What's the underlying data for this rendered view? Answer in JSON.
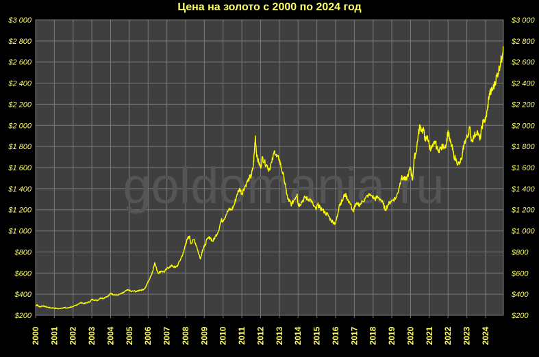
{
  "chart_data": {
    "type": "line",
    "title": "Цена на золото с 2000 по 2024  год",
    "watermark": "goldomania.ru",
    "x_categories": [
      "2000",
      "2001",
      "2002",
      "2003",
      "2004",
      "2005",
      "2006",
      "2007",
      "2008",
      "2009",
      "2010",
      "2011",
      "2012",
      "2013",
      "2014",
      "2015",
      "2016",
      "2017",
      "2018",
      "2019",
      "2020",
      "2021",
      "2022",
      "2023",
      "2024"
    ],
    "y_ticks": [
      "$200",
      "$400",
      "$600",
      "$800",
      "$1 000",
      "$1 200",
      "$1 400",
      "$1 600",
      "$1 800",
      "$2 000",
      "$2 200",
      "$2 400",
      "$2 600",
      "$2 800",
      "$3 000"
    ],
    "ylim": [
      200,
      3000
    ],
    "xlim": [
      2000.0,
      2024.95
    ],
    "grid": true,
    "colors": {
      "line": "#ffff00",
      "plot_bg": "#3f3f3f",
      "grid": "#7a7a7a",
      "axis_text": "#ffff66",
      "background": "#000000"
    },
    "series": [
      {
        "x": [
          2000.0,
          2000.08,
          2000.16,
          2000.25,
          2000.35,
          2000.5,
          2000.65,
          2000.8,
          2000.95,
          2001.1,
          2001.25,
          2001.4,
          2001.55,
          2001.7,
          2001.85,
          2002.0,
          2002.15,
          2002.3,
          2002.45,
          2002.6,
          2002.75,
          2002.9,
          2003.0,
          2003.15,
          2003.3,
          2003.45,
          2003.6,
          2003.75,
          2003.9,
          2004.0,
          2004.1,
          2004.2,
          2004.35,
          2004.5,
          2004.65,
          2004.8,
          2004.95,
          2005.1,
          2005.25,
          2005.4,
          2005.55,
          2005.7,
          2005.85,
          2005.95,
          2006.1,
          2006.25,
          2006.35,
          2006.45,
          2006.55,
          2006.7,
          2006.85,
          2007.0,
          2007.15,
          2007.3,
          2007.45,
          2007.6,
          2007.75,
          2007.9,
          2008.0,
          2008.1,
          2008.2,
          2008.3,
          2008.45,
          2008.6,
          2008.7,
          2008.8,
          2008.9,
          2009.0,
          2009.15,
          2009.3,
          2009.45,
          2009.6,
          2009.75,
          2009.9,
          2010.0,
          2010.15,
          2010.3,
          2010.45,
          2010.6,
          2010.75,
          2010.9,
          2011.0,
          2011.1,
          2011.25,
          2011.4,
          2011.5,
          2011.6,
          2011.67,
          2011.72,
          2011.8,
          2011.9,
          2012.0,
          2012.1,
          2012.2,
          2012.35,
          2012.45,
          2012.6,
          2012.75,
          2012.85,
          2013.0,
          2013.1,
          2013.25,
          2013.35,
          2013.45,
          2013.55,
          2013.65,
          2013.8,
          2013.95,
          2014.0,
          2014.1,
          2014.25,
          2014.4,
          2014.5,
          2014.65,
          2014.8,
          2014.95,
          2015.05,
          2015.15,
          2015.3,
          2015.45,
          2015.6,
          2015.75,
          2015.9,
          2016.0,
          2016.1,
          2016.2,
          2016.35,
          2016.5,
          2016.65,
          2016.8,
          2016.95,
          2017.0,
          2017.15,
          2017.3,
          2017.45,
          2017.6,
          2017.75,
          2017.95,
          2018.1,
          2018.25,
          2018.4,
          2018.55,
          2018.65,
          2018.8,
          2018.95,
          2019.1,
          2019.25,
          2019.4,
          2019.5,
          2019.6,
          2019.75,
          2019.9,
          2020.0,
          2020.1,
          2020.2,
          2020.3,
          2020.4,
          2020.5,
          2020.6,
          2020.7,
          2020.8,
          2020.9,
          2021.0,
          2021.1,
          2021.2,
          2021.3,
          2021.45,
          2021.6,
          2021.75,
          2021.9,
          2022.0,
          2022.1,
          2022.2,
          2022.3,
          2022.45,
          2022.6,
          2022.75,
          2022.85,
          2022.95,
          2023.05,
          2023.15,
          2023.25,
          2023.4,
          2023.55,
          2023.7,
          2023.8,
          2023.9,
          2024.0,
          2024.1,
          2024.2,
          2024.3,
          2024.4,
          2024.5,
          2024.6,
          2024.7,
          2024.8,
          2024.88,
          2024.94
        ],
        "y": [
          290,
          300,
          285,
          280,
          290,
          283,
          275,
          270,
          270,
          265,
          262,
          270,
          272,
          268,
          278,
          280,
          295,
          310,
          320,
          310,
          320,
          330,
          350,
          345,
          340,
          365,
          360,
          375,
          385,
          410,
          400,
          395,
          390,
          400,
          410,
          430,
          440,
          425,
          430,
          425,
          440,
          440,
          460,
          500,
          550,
          620,
          700,
          640,
          600,
          620,
          610,
          640,
          660,
          670,
          650,
          680,
          740,
          800,
          880,
          920,
          950,
          880,
          920,
          850,
          780,
          740,
          820,
          850,
          920,
          940,
          900,
          950,
          1000,
          1100,
          1100,
          1150,
          1200,
          1200,
          1250,
          1350,
          1400,
          1350,
          1400,
          1450,
          1500,
          1520,
          1600,
          1750,
          1900,
          1700,
          1650,
          1600,
          1700,
          1650,
          1620,
          1580,
          1650,
          1760,
          1700,
          1680,
          1600,
          1500,
          1400,
          1300,
          1280,
          1250,
          1300,
          1350,
          1250,
          1250,
          1290,
          1320,
          1300,
          1300,
          1250,
          1200,
          1250,
          1220,
          1200,
          1170,
          1150,
          1100,
          1080,
          1070,
          1150,
          1250,
          1280,
          1350,
          1300,
          1250,
          1180,
          1230,
          1250,
          1250,
          1280,
          1310,
          1340,
          1330,
          1300,
          1320,
          1300,
          1250,
          1200,
          1250,
          1280,
          1300,
          1320,
          1420,
          1500,
          1500,
          1480,
          1550,
          1600,
          1480,
          1700,
          1750,
          1900,
          2000,
          1950,
          1950,
          1850,
          1900,
          1800,
          1780,
          1800,
          1850,
          1760,
          1780,
          1800,
          1820,
          1950,
          1850,
          1800,
          1720,
          1660,
          1630,
          1700,
          1820,
          1870,
          1900,
          1980,
          1850,
          1900,
          1950,
          1860,
          1980,
          2050,
          2050,
          2150,
          2300,
          2320,
          2350,
          2400,
          2470,
          2520,
          2600,
          2650,
          2750
        ]
      }
    ]
  }
}
